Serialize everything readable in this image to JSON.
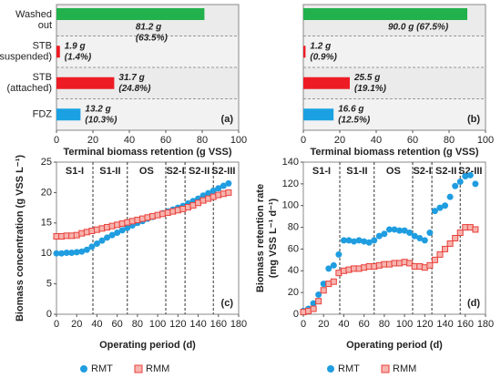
{
  "chart_data": [
    {
      "type": "hbar",
      "panel": "(a)",
      "categories": [
        [
          "Washed",
          "out"
        ],
        [
          "STB",
          "(suspended)"
        ],
        [
          "STB",
          "(attached)"
        ],
        [
          "FDZ"
        ]
      ],
      "values": [
        81.2,
        1.9,
        31.7,
        13.2
      ],
      "value_labels": [
        [
          "81.2 g",
          "(63.5%)"
        ],
        [
          "1.9 g",
          "(1.4%)"
        ],
        [
          "31.7 g",
          "(24.8%)"
        ],
        [
          "13.2 g",
          "(10.3%)"
        ]
      ],
      "colors": [
        "#22b14c",
        "#ed1c24",
        "#ed1c24",
        "#1ba1e2"
      ],
      "xlabel": "Terminal biomass retention (g VSS)",
      "xlim": [
        0,
        100
      ],
      "xticks": [
        0,
        20,
        40,
        60,
        80,
        100
      ]
    },
    {
      "type": "hbar",
      "panel": "(b)",
      "values": [
        90.0,
        1.2,
        25.5,
        16.6
      ],
      "value_labels": [
        [
          "90.0 g (67.5%)"
        ],
        [
          "1.2 g",
          "(0.9%)"
        ],
        [
          "25.5 g",
          "(19.1%)"
        ],
        [
          "16.6 g",
          "(12.5%)"
        ]
      ],
      "colors": [
        "#22b14c",
        "#ed1c24",
        "#ed1c24",
        "#1ba1e2"
      ],
      "xlabel": "Terminal biomass retention (g VSS)",
      "xlim": [
        0,
        100
      ],
      "xticks": [
        0,
        20,
        40,
        60,
        80,
        100
      ]
    },
    {
      "type": "scatter",
      "panel": "(c)",
      "ylabel": [
        "Biomass concentration (g VSS L⁻¹)"
      ],
      "xlabel": "Operating period (d)",
      "phases": [
        "S1-I",
        "S1-II",
        "OS",
        "S2-I",
        "S2-II",
        "S2-III"
      ],
      "phase_boundaries": [
        36,
        70,
        108,
        127,
        155
      ],
      "x": [
        0,
        5,
        10,
        15,
        20,
        25,
        30,
        35,
        40,
        45,
        50,
        55,
        60,
        65,
        70,
        75,
        80,
        85,
        90,
        95,
        100,
        105,
        110,
        115,
        120,
        125,
        130,
        135,
        140,
        145,
        150,
        155,
        160,
        165,
        170
      ],
      "series": [
        {
          "name": "RMT",
          "color": "#1f9de0",
          "marker": "circle",
          "values": [
            10.0,
            10.0,
            10.1,
            10.1,
            10.2,
            10.3,
            10.6,
            11.1,
            11.6,
            12.1,
            12.6,
            13.0,
            13.4,
            13.8,
            14.2,
            14.6,
            15.0,
            15.3,
            15.7,
            16.0,
            16.3,
            16.6,
            16.9,
            17.2,
            17.5,
            17.8,
            18.2,
            18.6,
            19.0,
            19.5,
            19.9,
            20.3,
            20.7,
            21.1,
            21.5
          ]
        },
        {
          "name": "RMM",
          "color": "#e8403a",
          "marker": "square",
          "values": [
            12.8,
            12.8,
            12.9,
            12.9,
            13.0,
            13.3,
            13.5,
            13.7,
            13.9,
            14.1,
            14.3,
            14.5,
            14.7,
            14.9,
            15.1,
            15.3,
            15.5,
            15.7,
            15.9,
            16.1,
            16.3,
            16.5,
            16.7,
            16.9,
            17.1,
            17.3,
            17.6,
            17.9,
            18.3,
            18.7,
            19.0,
            19.3,
            19.6,
            19.8,
            20.0
          ]
        }
      ],
      "xlim": [
        0,
        180
      ],
      "xticks": [
        0,
        20,
        40,
        60,
        80,
        100,
        120,
        140,
        160,
        180
      ],
      "ylim": [
        0,
        25
      ],
      "yticks": [
        0,
        5,
        10,
        15,
        20,
        25
      ]
    },
    {
      "type": "scatter",
      "panel": "(d)",
      "ylabel": [
        "Biomass retention rate",
        "(mg VSS L⁻¹ d⁻¹)"
      ],
      "xlabel": "Operating period (d)",
      "phases": [
        "S1-I",
        "S1-II",
        "OS",
        "S2-I",
        "S2-II",
        "S2-III"
      ],
      "phase_boundaries": [
        36,
        70,
        108,
        127,
        155
      ],
      "x": [
        0,
        5,
        10,
        15,
        20,
        25,
        30,
        35,
        40,
        45,
        50,
        55,
        60,
        65,
        70,
        75,
        80,
        85,
        90,
        95,
        100,
        105,
        110,
        115,
        120,
        125,
        130,
        135,
        140,
        145,
        150,
        155,
        160,
        165,
        170
      ],
      "series": [
        {
          "name": "RMT",
          "color": "#1f9de0",
          "marker": "circle",
          "values": [
            3,
            5,
            10,
            18,
            28,
            42,
            45,
            55,
            68,
            68,
            67,
            68,
            67,
            66,
            68,
            72,
            74,
            78,
            78,
            77,
            77,
            75,
            72,
            70,
            68,
            75,
            95,
            98,
            100,
            108,
            118,
            122,
            127,
            128,
            120
          ]
        },
        {
          "name": "RMM",
          "color": "#e8403a",
          "marker": "square",
          "values": [
            2,
            3,
            5,
            12,
            22,
            28,
            30,
            38,
            40,
            41,
            42,
            42,
            43,
            44,
            44,
            45,
            46,
            46,
            47,
            47,
            48,
            47,
            44,
            44,
            43,
            45,
            50,
            55,
            60,
            65,
            70,
            75,
            80,
            80,
            78
          ]
        }
      ],
      "xlim": [
        0,
        180
      ],
      "xticks": [
        0,
        20,
        40,
        60,
        80,
        100,
        120,
        140,
        160,
        180
      ],
      "ylim": [
        0,
        140
      ],
      "yticks": [
        0,
        20,
        40,
        60,
        80,
        100,
        120,
        140
      ]
    }
  ]
}
